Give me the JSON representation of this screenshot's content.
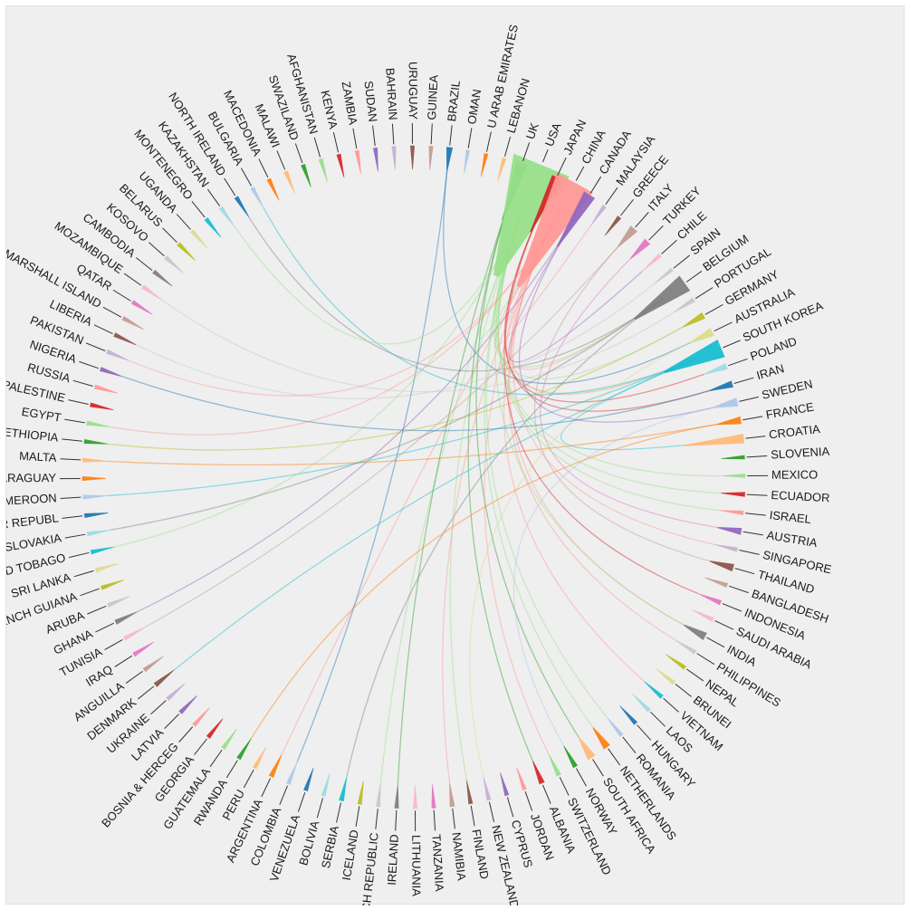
{
  "chart_data": {
    "type": "chord",
    "title": "",
    "groups": [
      {
        "label": "BRAZIL",
        "color": "#1f77b4",
        "value": 0.6
      },
      {
        "label": "OMAN",
        "color": "#aec7e8",
        "value": 0.25
      },
      {
        "label": "U ARAB EMIRATES",
        "color": "#ff7f0e",
        "value": 0.25
      },
      {
        "label": "LEBANON",
        "color": "#ffbb78",
        "value": 0.25
      },
      {
        "label": "UK",
        "color": "#2ca02c",
        "value": 1.4
      },
      {
        "label": "USA",
        "color": "#98df8a",
        "value": 9.0
      },
      {
        "label": "JAPAN",
        "color": "#d62728",
        "value": 1.2
      },
      {
        "label": "CHINA",
        "color": "#ff9896",
        "value": 6.0
      },
      {
        "label": "CANADA",
        "color": "#9467bd",
        "value": 1.6
      },
      {
        "label": "MALAYSIA",
        "color": "#c5b0d5",
        "value": 0.3
      },
      {
        "label": "GREECE",
        "color": "#8c564b",
        "value": 0.3
      },
      {
        "label": "ITALY",
        "color": "#c49c94",
        "value": 1.0
      },
      {
        "label": "TURKEY",
        "color": "#e377c2",
        "value": 0.8
      },
      {
        "label": "CHILE",
        "color": "#f7b6d2",
        "value": 0.3
      },
      {
        "label": "SPAIN",
        "color": "#c7c7c7",
        "value": 0.2
      },
      {
        "label": "BELGIUM",
        "color": "#7f7f7f",
        "value": 2.5
      },
      {
        "label": "PORTUGAL",
        "color": "#c7c7c7",
        "value": 0.4
      },
      {
        "label": "GERMANY",
        "color": "#bcbd22",
        "value": 0.7
      },
      {
        "label": "AUSTRALIA",
        "color": "#dbdb8d",
        "value": 1.0
      },
      {
        "label": "SOUTH KOREA",
        "color": "#17becf",
        "value": 2.6
      },
      {
        "label": "POLAND",
        "color": "#9edae5",
        "value": 0.6
      },
      {
        "label": "IRAN",
        "color": "#1f77b4",
        "value": 0.7
      },
      {
        "label": "SWEDEN",
        "color": "#aec7e8",
        "value": 1.0
      },
      {
        "label": "FRANCE",
        "color": "#ff7f0e",
        "value": 0.8
      },
      {
        "label": "CROATIA",
        "color": "#ffbb78",
        "value": 1.1
      },
      {
        "label": "SLOVENIA",
        "color": "#2ca02c",
        "value": 0.25
      },
      {
        "label": "MEXICO",
        "color": "#98df8a",
        "value": 0.25
      },
      {
        "label": "ECUADOR",
        "color": "#d62728",
        "value": 0.35
      },
      {
        "label": "ISRAEL",
        "color": "#ff9896",
        "value": 0.3
      },
      {
        "label": "AUSTRIA",
        "color": "#9467bd",
        "value": 0.7
      },
      {
        "label": "SINGAPORE",
        "color": "#c5b0d5",
        "value": 0.3
      },
      {
        "label": "THAILAND",
        "color": "#8c564b",
        "value": 0.8
      },
      {
        "label": "BANGLADESH",
        "color": "#c49c94",
        "value": 0.3
      },
      {
        "label": "INDONESIA",
        "color": "#e377c2",
        "value": 0.4
      },
      {
        "label": "SAUDI ARABIA",
        "color": "#f7b6d2",
        "value": 0.3
      },
      {
        "label": "INDIA",
        "color": "#7f7f7f",
        "value": 0.9
      },
      {
        "label": "PHILIPPINES",
        "color": "#c7c7c7",
        "value": 0.3
      },
      {
        "label": "NEPAL",
        "color": "#bcbd22",
        "value": 0.3
      },
      {
        "label": "BRUNEI",
        "color": "#dbdb8d",
        "value": 0.3
      },
      {
        "label": "VIETNAM",
        "color": "#17becf",
        "value": 0.3
      },
      {
        "label": "LAOS",
        "color": "#9edae5",
        "value": 0.3
      },
      {
        "label": "HUNGARY",
        "color": "#1f77b4",
        "value": 0.3
      },
      {
        "label": "ROMANIA",
        "color": "#aec7e8",
        "value": 0.3
      },
      {
        "label": "NETHERLANDS",
        "color": "#ff7f0e",
        "value": 0.8
      },
      {
        "label": "SOUTH AFRICA",
        "color": "#ffbb78",
        "value": 1.0
      },
      {
        "label": "NORWAY",
        "color": "#2ca02c",
        "value": 0.4
      },
      {
        "label": "SWITZERLAND",
        "color": "#98df8a",
        "value": 0.4
      },
      {
        "label": "ALBANIA",
        "color": "#d62728",
        "value": 0.5
      },
      {
        "label": "JORDAN",
        "color": "#ff9896",
        "value": 0.3
      },
      {
        "label": "CYPRUS",
        "color": "#9467bd",
        "value": 0.3
      },
      {
        "label": "NEW ZEALAND",
        "color": "#c5b0d5",
        "value": 0.3
      },
      {
        "label": "FINLAND",
        "color": "#8c564b",
        "value": 0.3
      },
      {
        "label": "NAMIBIA",
        "color": "#c49c94",
        "value": 0.4
      },
      {
        "label": "TANZANIA",
        "color": "#e377c2",
        "value": 0.3
      },
      {
        "label": "LITHUANIA",
        "color": "#f7b6d2",
        "value": 0.3
      },
      {
        "label": "IRELAND",
        "color": "#7f7f7f",
        "value": 0.3
      },
      {
        "label": "CZECH REPUBLIC",
        "color": "#c7c7c7",
        "value": 0.3
      },
      {
        "label": "ICELAND",
        "color": "#bcbd22",
        "value": 0.3
      },
      {
        "label": "SERBIA",
        "color": "#17becf",
        "value": 0.4
      },
      {
        "label": "BOLIVIA",
        "color": "#9edae5",
        "value": 0.3
      },
      {
        "label": "VENEZUELA",
        "color": "#1f77b4",
        "value": 0.3
      },
      {
        "label": "COLOMBIA",
        "color": "#aec7e8",
        "value": 0.3
      },
      {
        "label": "ARGENTINA",
        "color": "#ff7f0e",
        "value": 0.4
      },
      {
        "label": "PERU",
        "color": "#ffbb78",
        "value": 0.3
      },
      {
        "label": "RWANDA",
        "color": "#2ca02c",
        "value": 0.3
      },
      {
        "label": "GUATEMALA",
        "color": "#98df8a",
        "value": 0.3
      },
      {
        "label": "GEORGIA",
        "color": "#d62728",
        "value": 0.3
      },
      {
        "label": "BOSNIA & HERCEG",
        "color": "#ff9896",
        "value": 0.3
      },
      {
        "label": "LATVIA",
        "color": "#9467bd",
        "value": 0.3
      },
      {
        "label": "UKRAINE",
        "color": "#c5b0d5",
        "value": 0.3
      },
      {
        "label": "DENMARK",
        "color": "#8c564b",
        "value": 0.4
      },
      {
        "label": "ANGUILLA",
        "color": "#c49c94",
        "value": 0.3
      },
      {
        "label": "IRAQ",
        "color": "#e377c2",
        "value": 0.3
      },
      {
        "label": "TUNISIA",
        "color": "#f7b6d2",
        "value": 0.3
      },
      {
        "label": "GHANA",
        "color": "#7f7f7f",
        "value": 0.4
      },
      {
        "label": "ARUBA",
        "color": "#c7c7c7",
        "value": 0.3
      },
      {
        "label": "FRENCH GUIANA",
        "color": "#bcbd22",
        "value": 0.3
      },
      {
        "label": "SRI LANKA",
        "color": "#dbdb8d",
        "value": 0.3
      },
      {
        "label": "TRINIDAD TOBAGO",
        "color": "#17becf",
        "value": 0.3
      },
      {
        "label": "SLOVAKIA",
        "color": "#9edae5",
        "value": 0.3
      },
      {
        "label": "CENT AFR REPUBL",
        "color": "#1f77b4",
        "value": 0.3
      },
      {
        "label": "CAMEROON",
        "color": "#aec7e8",
        "value": 0.3
      },
      {
        "label": "PARAGUAY",
        "color": "#ff7f0e",
        "value": 0.3
      },
      {
        "label": "MALTA",
        "color": "#ffbb78",
        "value": 0.3
      },
      {
        "label": "ETHIOPIA",
        "color": "#2ca02c",
        "value": 0.3
      },
      {
        "label": "EGYPT",
        "color": "#98df8a",
        "value": 0.3
      },
      {
        "label": "PALESTINE",
        "color": "#d62728",
        "value": 0.3
      },
      {
        "label": "RUSSIA",
        "color": "#ff9896",
        "value": 0.3
      },
      {
        "label": "NIGERIA",
        "color": "#9467bd",
        "value": 0.3
      },
      {
        "label": "PAKISTAN",
        "color": "#c5b0d5",
        "value": 0.3
      },
      {
        "label": "LIBERIA",
        "color": "#8c564b",
        "value": 0.3
      },
      {
        "label": "MARSHALL ISLAND",
        "color": "#c49c94",
        "value": 0.3
      },
      {
        "label": "QATAR",
        "color": "#e377c2",
        "value": 0.3
      },
      {
        "label": "MOZAMBIQUE",
        "color": "#f7b6d2",
        "value": 0.3
      },
      {
        "label": "CAMBODIA",
        "color": "#7f7f7f",
        "value": 0.3
      },
      {
        "label": "KOSOVO",
        "color": "#c7c7c7",
        "value": 0.3
      },
      {
        "label": "BELARUS",
        "color": "#bcbd22",
        "value": 0.3
      },
      {
        "label": "UGANDA",
        "color": "#dbdb8d",
        "value": 0.3
      },
      {
        "label": "MONTENEGRO",
        "color": "#17becf",
        "value": 0.3
      },
      {
        "label": "KAZAKHSTAN",
        "color": "#9edae5",
        "value": 0.3
      },
      {
        "label": "NORTH IRELAND",
        "color": "#1f77b4",
        "value": 0.3
      },
      {
        "label": "BULGARIA",
        "color": "#aec7e8",
        "value": 0.3
      },
      {
        "label": "MACEDONIA",
        "color": "#ff7f0e",
        "value": 0.3
      },
      {
        "label": "MALAWI",
        "color": "#ffbb78",
        "value": 0.3
      },
      {
        "label": "SWAZILAND",
        "color": "#2ca02c",
        "value": 0.3
      },
      {
        "label": "AFGHANISTAN",
        "color": "#98df8a",
        "value": 0.3
      },
      {
        "label": "KENYA",
        "color": "#d62728",
        "value": 0.3
      },
      {
        "label": "ZAMBIA",
        "color": "#ff9896",
        "value": 0.3
      },
      {
        "label": "SUDAN",
        "color": "#9467bd",
        "value": 0.3
      },
      {
        "label": "BAHRAIN",
        "color": "#c5b0d5",
        "value": 0.3
      },
      {
        "label": "URUGUAY",
        "color": "#8c564b",
        "value": 0.3
      },
      {
        "label": "GUINEA",
        "color": "#c49c94",
        "value": 0.3
      }
    ],
    "links": [
      {
        "source": "USA",
        "target": "CHINA"
      },
      {
        "source": "USA",
        "target": "SOUTH KOREA"
      },
      {
        "source": "USA",
        "target": "BELGIUM"
      },
      {
        "source": "CHINA",
        "target": "SOUTH KOREA"
      },
      {
        "source": "CHINA",
        "target": "BELGIUM"
      },
      {
        "source": "UK",
        "target": "SOUTH AFRICA"
      },
      {
        "source": "BRAZIL",
        "target": "AUSTRALIA"
      },
      {
        "source": "CANADA",
        "target": "SWEDEN"
      },
      {
        "source": "JAPAN",
        "target": "POLAND"
      },
      {
        "source": "CHINA",
        "target": "INDIA"
      },
      {
        "source": "USA",
        "target": "NETHERLANDS"
      },
      {
        "source": "BELGIUM",
        "target": "NORTH IRELAND"
      },
      {
        "source": "SOUTH KOREA",
        "target": "BULGARIA"
      },
      {
        "source": "ITALY",
        "target": "THAILAND"
      },
      {
        "source": "TURKEY",
        "target": "AUSTRIA"
      },
      {
        "source": "USA",
        "target": "CZECH REPUBLIC"
      },
      {
        "source": "CHINA",
        "target": "ARGENTINA"
      },
      {
        "source": "UK",
        "target": "ALBANIA"
      },
      {
        "source": "CANADA",
        "target": "GHANA"
      },
      {
        "source": "SPAIN",
        "target": "LIBERIA"
      },
      {
        "source": "GERMANY",
        "target": "ETHIOPIA"
      },
      {
        "source": "FRANCE",
        "target": "MALTA"
      },
      {
        "source": "USA",
        "target": "ROMANIA"
      },
      {
        "source": "CHINA",
        "target": "SWITZERLAND"
      },
      {
        "source": "JAPAN",
        "target": "IRAN"
      },
      {
        "source": "SOUTH KOREA",
        "target": "CROATIA"
      },
      {
        "source": "USA",
        "target": "INDIA"
      },
      {
        "source": "CHINA",
        "target": "VIETNAM"
      },
      {
        "source": "USA",
        "target": "MEXICO"
      },
      {
        "source": "BELGIUM",
        "target": "SERBIA"
      },
      {
        "source": "AUSTRALIA",
        "target": "NEW ZEALAND"
      },
      {
        "source": "USA",
        "target": "ECUADOR"
      },
      {
        "source": "CHINA",
        "target": "PHILIPPINES"
      },
      {
        "source": "UK",
        "target": "IRELAND"
      },
      {
        "source": "BRAZIL",
        "target": "COLOMBIA"
      },
      {
        "source": "USA",
        "target": "KAZAKHSTAN"
      },
      {
        "source": "CHINA",
        "target": "PAKISTAN"
      },
      {
        "source": "PORTUGAL",
        "target": "MOZAMBIQUE"
      },
      {
        "source": "SOUTH KOREA",
        "target": "CAMEROON"
      },
      {
        "source": "ITALY",
        "target": "TUNISIA"
      },
      {
        "source": "SWEDEN",
        "target": "NORWAY"
      },
      {
        "source": "FRANCE",
        "target": "RWANDA"
      },
      {
        "source": "USA",
        "target": "ISRAEL"
      },
      {
        "source": "CHINA",
        "target": "SINGAPORE"
      },
      {
        "source": "CANADA",
        "target": "CHILE"
      },
      {
        "source": "JAPAN",
        "target": "INDONESIA"
      },
      {
        "source": "CHINA",
        "target": "MALAYSIA"
      },
      {
        "source": "USA",
        "target": "GERMANY"
      },
      {
        "source": "USA",
        "target": "TRINIDAD TOBAGO"
      },
      {
        "source": "BELGIUM",
        "target": "SLOVAKIA"
      },
      {
        "source": "SOUTH KOREA",
        "target": "DENMARK"
      },
      {
        "source": "CHINA",
        "target": "EGYPT"
      },
      {
        "source": "IRAN",
        "target": "NIGERIA"
      },
      {
        "source": "USA",
        "target": "FINLAND"
      },
      {
        "source": "CHINA",
        "target": "NAMIBIA"
      }
    ]
  }
}
